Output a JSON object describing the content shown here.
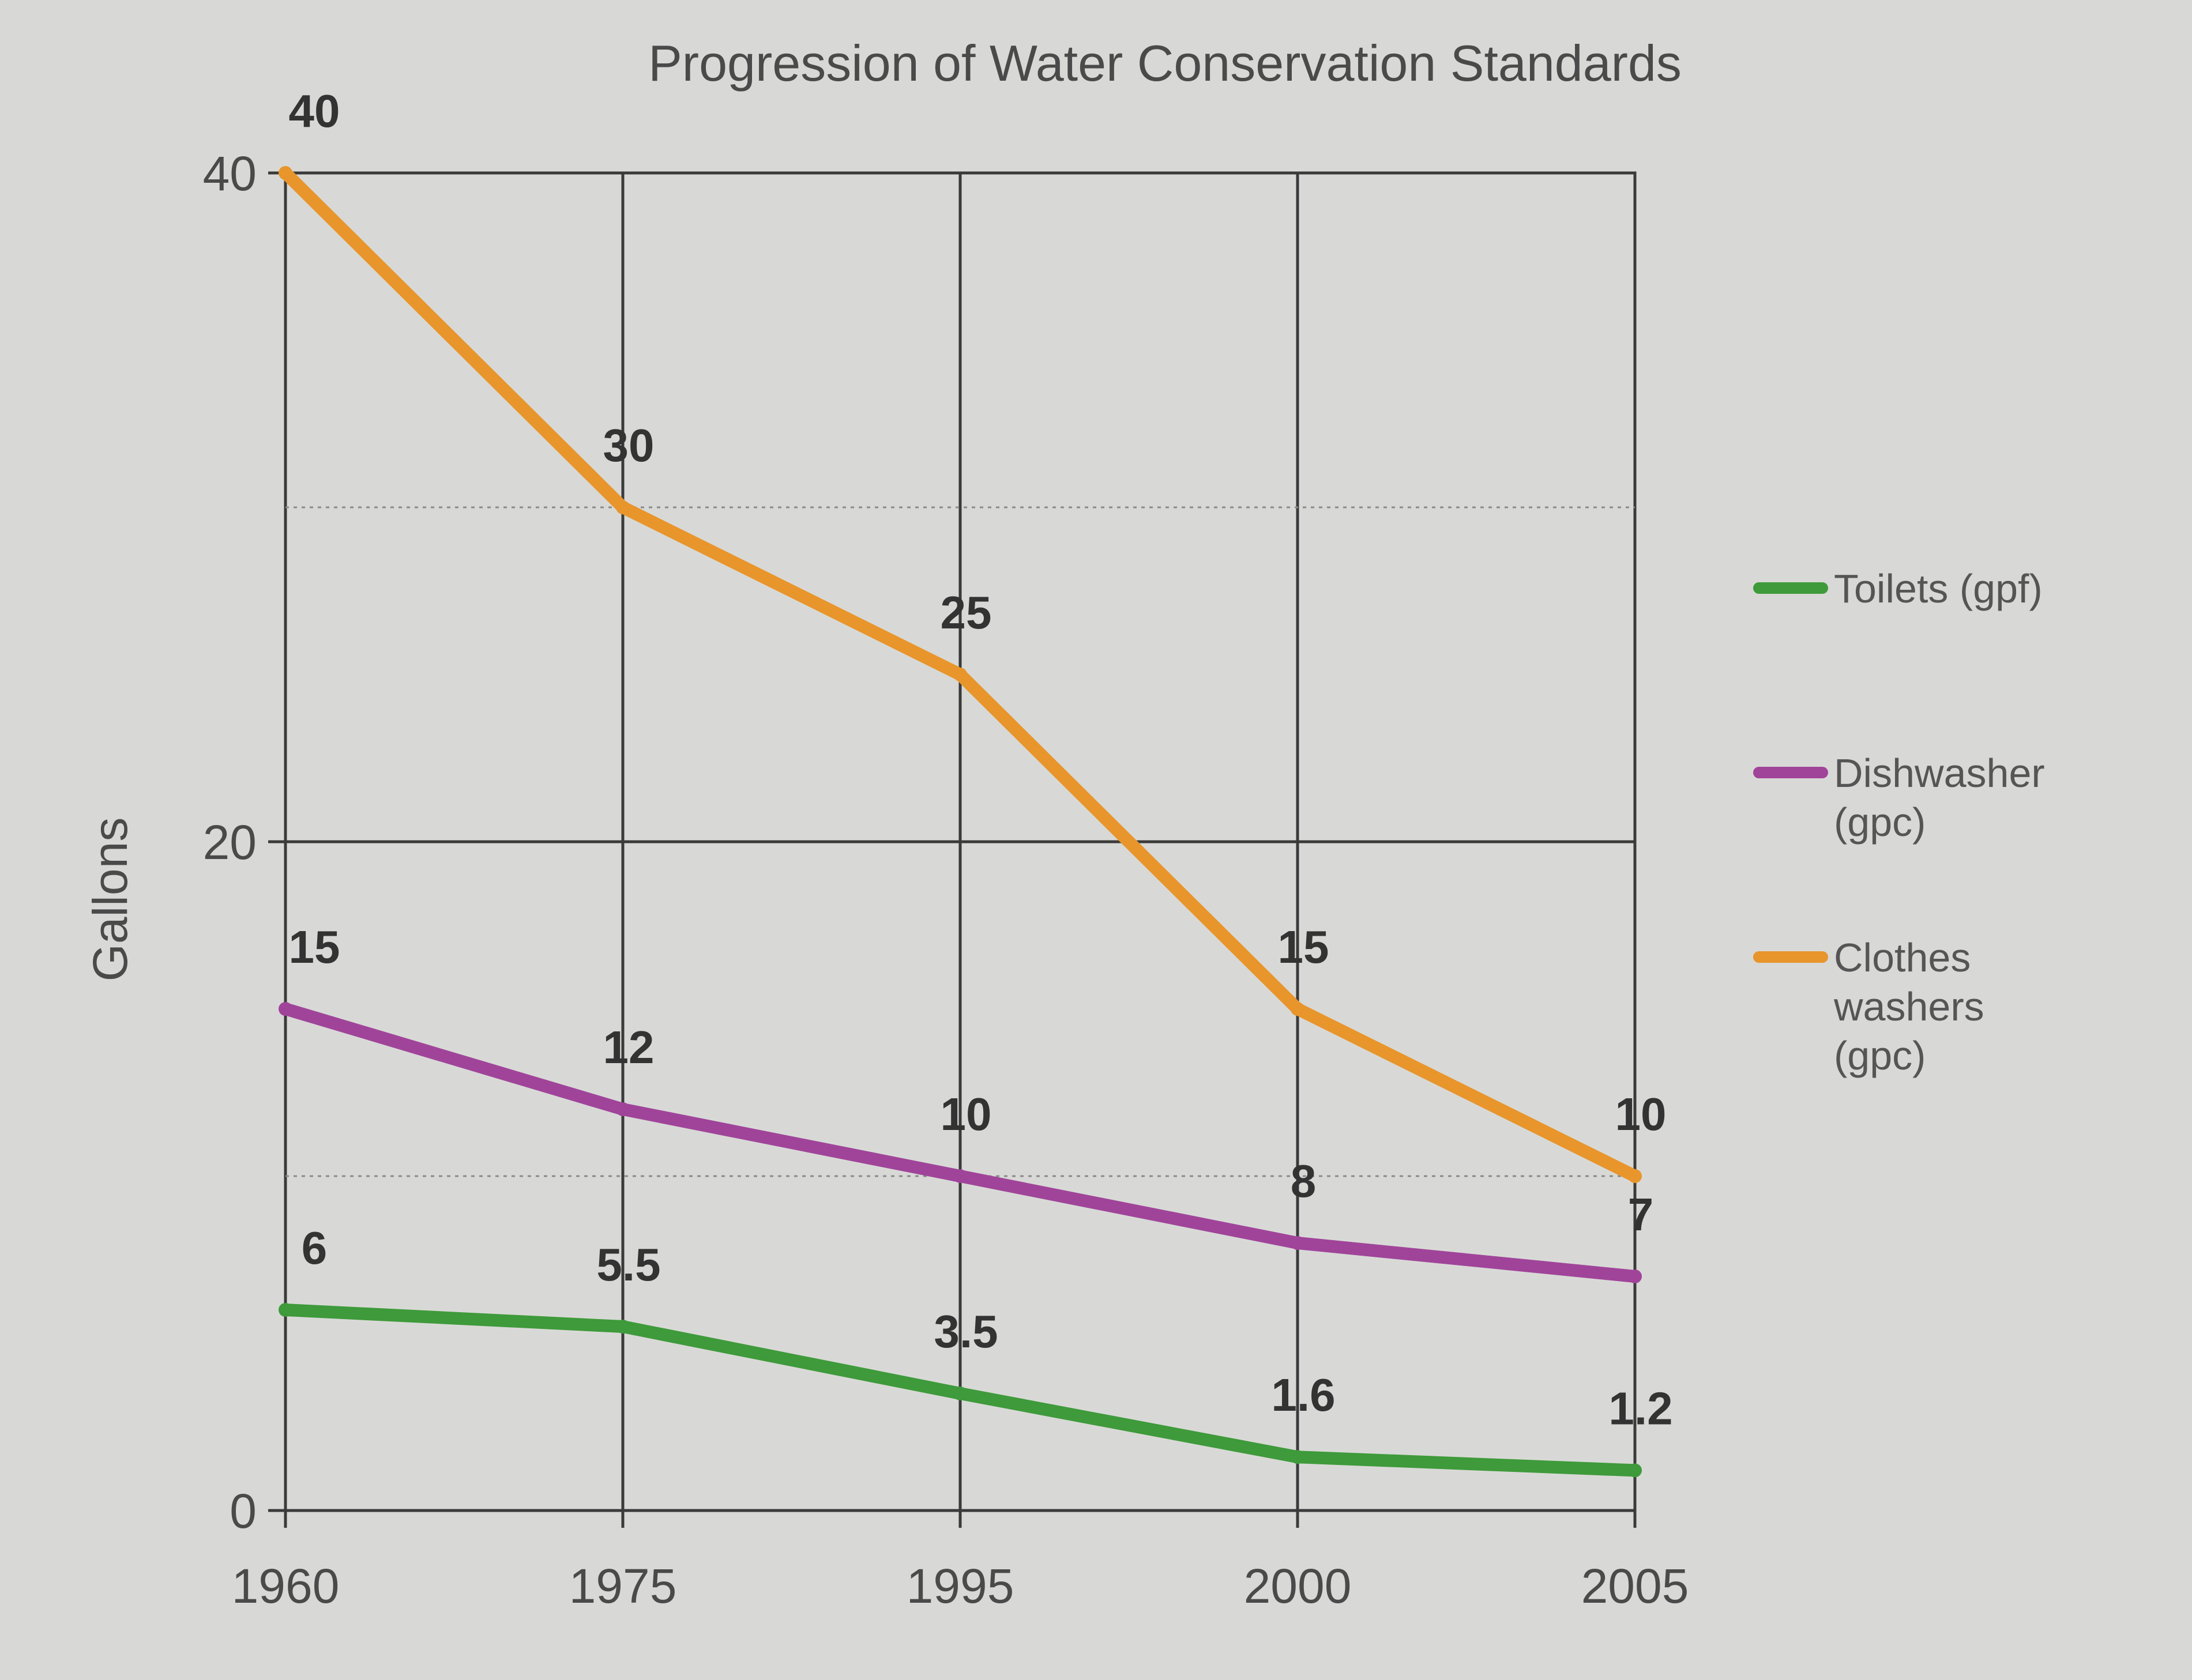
{
  "chart_data": {
    "type": "line",
    "title": "Progression of Water Conservation Standards",
    "ylabel": "Gallons",
    "xlabel": "",
    "categories": [
      "1960",
      "1975",
      "1995",
      "2000",
      "2005"
    ],
    "ylim": [
      0,
      40
    ],
    "yticks": [
      "0",
      "20",
      "40"
    ],
    "grid": true,
    "legend_position": "right",
    "series": [
      {
        "name": "Toilets (gpf)",
        "values": [
          6,
          5.5,
          3.5,
          1.6,
          1.2
        ],
        "labels": [
          "6",
          "5.5",
          "3.5",
          "1.6",
          "1.2"
        ],
        "color": "#3e9a3a"
      },
      {
        "name": "Dishwasher (gpc)",
        "values": [
          15,
          12,
          10,
          8,
          7
        ],
        "labels": [
          "15",
          "12",
          "10",
          "8",
          "7"
        ],
        "color": "#a0449a"
      },
      {
        "name": "Clothes washers (gpc)",
        "values": [
          40,
          30,
          25,
          15,
          10
        ],
        "labels": [
          "40",
          "30",
          "25",
          "15",
          "10"
        ],
        "color": "#e8952c"
      }
    ]
  }
}
